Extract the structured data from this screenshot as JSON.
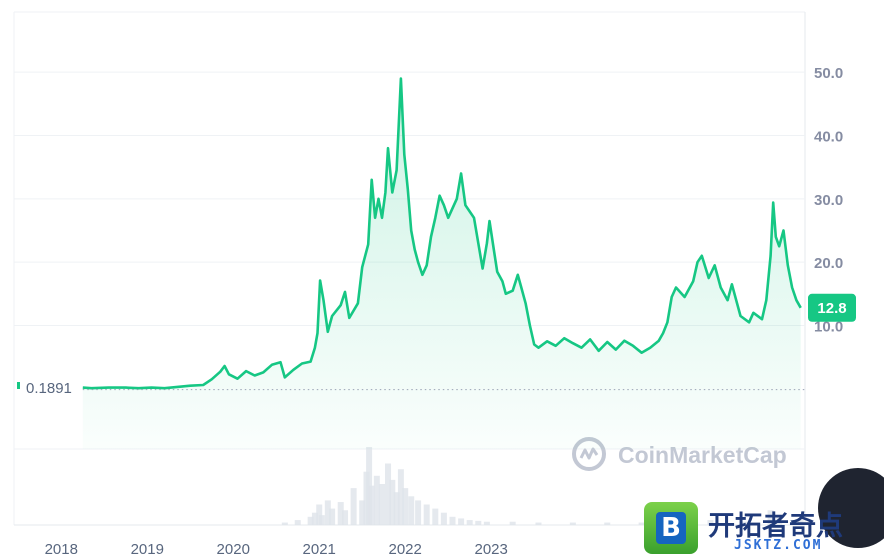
{
  "chart_data": {
    "type": "area",
    "title": "",
    "xlabel": "",
    "ylabel": "",
    "ylim": [
      -9.5,
      59.5
    ],
    "y_ticks": [
      "50.0",
      "40.0",
      "30.0",
      "20.0",
      "10.0"
    ],
    "x_ticks": [
      "2018",
      "2019",
      "2020",
      "2021",
      "2022",
      "2023"
    ],
    "start_label": "0.1891",
    "last_value_label": "12.8",
    "grid": "horizontal",
    "line_color": "#16c784",
    "series": [
      {
        "values": [
          [
            2018.3,
            0.19
          ],
          [
            2018.4,
            0.1
          ],
          [
            2018.6,
            0.2
          ],
          [
            2018.8,
            0.2
          ],
          [
            2018.95,
            0.1
          ],
          [
            2019.1,
            0.2
          ],
          [
            2019.25,
            0.1
          ],
          [
            2019.4,
            0.3
          ],
          [
            2019.55,
            0.5
          ],
          [
            2019.7,
            0.6
          ],
          [
            2019.8,
            1.5
          ],
          [
            2019.9,
            2.7
          ],
          [
            2019.95,
            3.6
          ],
          [
            2020.0,
            2.3
          ],
          [
            2020.1,
            1.6
          ],
          [
            2020.2,
            2.8
          ],
          [
            2020.3,
            2.1
          ],
          [
            2020.4,
            2.6
          ],
          [
            2020.5,
            3.8
          ],
          [
            2020.6,
            4.2
          ],
          [
            2020.65,
            1.8
          ],
          [
            2020.75,
            3.0
          ],
          [
            2020.85,
            4.0
          ],
          [
            2020.95,
            4.3
          ],
          [
            2021.0,
            6.5
          ],
          [
            2021.03,
            8.8
          ],
          [
            2021.06,
            17.1
          ],
          [
            2021.1,
            14.0
          ],
          [
            2021.15,
            9.0
          ],
          [
            2021.2,
            11.5
          ],
          [
            2021.3,
            13.2
          ],
          [
            2021.35,
            15.3
          ],
          [
            2021.4,
            11.2
          ],
          [
            2021.5,
            13.5
          ],
          [
            2021.55,
            19.2
          ],
          [
            2021.62,
            22.8
          ],
          [
            2021.66,
            33.0
          ],
          [
            2021.7,
            27.0
          ],
          [
            2021.74,
            30.0
          ],
          [
            2021.78,
            27.0
          ],
          [
            2021.82,
            31.0
          ],
          [
            2021.85,
            38.0
          ],
          [
            2021.9,
            31.0
          ],
          [
            2021.95,
            34.5
          ],
          [
            2022.0,
            49.0
          ],
          [
            2022.04,
            37.0
          ],
          [
            2022.08,
            31.5
          ],
          [
            2022.12,
            25.0
          ],
          [
            2022.16,
            22.0
          ],
          [
            2022.2,
            20.0
          ],
          [
            2022.25,
            18.0
          ],
          [
            2022.3,
            19.5
          ],
          [
            2022.35,
            24.0
          ],
          [
            2022.4,
            27.0
          ],
          [
            2022.45,
            30.5
          ],
          [
            2022.5,
            29.0
          ],
          [
            2022.55,
            27.0
          ],
          [
            2022.6,
            28.5
          ],
          [
            2022.65,
            30.0
          ],
          [
            2022.7,
            34.0
          ],
          [
            2022.75,
            29.0
          ],
          [
            2022.8,
            28.0
          ],
          [
            2022.85,
            27.0
          ],
          [
            2022.9,
            23.0
          ],
          [
            2022.95,
            19.0
          ],
          [
            2023.0,
            23.0
          ],
          [
            2023.03,
            26.5
          ],
          [
            2023.08,
            22.0
          ],
          [
            2023.12,
            18.5
          ],
          [
            2023.18,
            17.0
          ],
          [
            2023.22,
            15.0
          ],
          [
            2023.3,
            15.5
          ],
          [
            2023.36,
            18.0
          ],
          [
            2023.4,
            16.0
          ],
          [
            2023.45,
            13.5
          ],
          [
            2023.5,
            10.0
          ],
          [
            2023.55,
            7.0
          ],
          [
            2023.6,
            6.5
          ],
          [
            2023.7,
            7.5
          ],
          [
            2023.8,
            6.8
          ],
          [
            2023.9,
            8.0
          ],
          [
            2024.0,
            7.2
          ],
          [
            2024.1,
            6.5
          ],
          [
            2024.2,
            7.8
          ],
          [
            2024.3,
            6.0
          ],
          [
            2024.4,
            7.4
          ],
          [
            2024.5,
            6.2
          ],
          [
            2024.6,
            7.6
          ],
          [
            2024.7,
            6.8
          ],
          [
            2024.8,
            5.7
          ],
          [
            2024.9,
            6.5
          ],
          [
            2025.0,
            7.6
          ],
          [
            2025.05,
            8.8
          ],
          [
            2025.1,
            10.5
          ],
          [
            2025.15,
            14.5
          ],
          [
            2025.2,
            16.0
          ],
          [
            2025.3,
            14.5
          ],
          [
            2025.4,
            17.0
          ],
          [
            2025.45,
            20.0
          ],
          [
            2025.5,
            21.0
          ],
          [
            2025.58,
            17.5
          ],
          [
            2025.65,
            19.5
          ],
          [
            2025.72,
            16.0
          ],
          [
            2025.8,
            14.0
          ],
          [
            2025.85,
            16.5
          ],
          [
            2025.9,
            14.0
          ],
          [
            2025.95,
            11.5
          ],
          [
            2026.05,
            10.5
          ],
          [
            2026.1,
            12.0
          ],
          [
            2026.2,
            11.0
          ],
          [
            2026.25,
            14.0
          ],
          [
            2026.3,
            21.0
          ],
          [
            2026.33,
            29.4
          ],
          [
            2026.36,
            24.0
          ],
          [
            2026.4,
            22.5
          ],
          [
            2026.45,
            25.0
          ],
          [
            2026.5,
            19.5
          ],
          [
            2026.55,
            16.0
          ],
          [
            2026.6,
            14.0
          ],
          [
            2026.65,
            12.8
          ]
        ]
      }
    ],
    "volume_series": [
      [
        2020.65,
        0.3
      ],
      [
        2020.8,
        0.6
      ],
      [
        2020.95,
        1.0
      ],
      [
        2021.0,
        1.5
      ],
      [
        2021.05,
        2.5
      ],
      [
        2021.08,
        1.2
      ],
      [
        2021.15,
        3.0
      ],
      [
        2021.2,
        2.0
      ],
      [
        2021.3,
        2.8
      ],
      [
        2021.35,
        1.8
      ],
      [
        2021.45,
        4.5
      ],
      [
        2021.55,
        3.0
      ],
      [
        2021.6,
        6.5
      ],
      [
        2021.63,
        9.5
      ],
      [
        2021.66,
        4.8
      ],
      [
        2021.72,
        6.0
      ],
      [
        2021.78,
        5.0
      ],
      [
        2021.85,
        7.5
      ],
      [
        2021.9,
        5.5
      ],
      [
        2021.95,
        4.0
      ],
      [
        2022.0,
        6.8
      ],
      [
        2022.05,
        4.5
      ],
      [
        2022.12,
        3.5
      ],
      [
        2022.2,
        3.0
      ],
      [
        2022.3,
        2.5
      ],
      [
        2022.4,
        2.0
      ],
      [
        2022.5,
        1.5
      ],
      [
        2022.6,
        1.0
      ],
      [
        2022.7,
        0.8
      ],
      [
        2022.8,
        0.6
      ],
      [
        2022.9,
        0.5
      ],
      [
        2023.0,
        0.4
      ],
      [
        2023.3,
        0.4
      ],
      [
        2023.6,
        0.3
      ],
      [
        2024.0,
        0.3
      ],
      [
        2024.4,
        0.3
      ],
      [
        2024.8,
        0.3
      ],
      [
        2025.2,
        0.5
      ],
      [
        2025.6,
        0.6
      ],
      [
        2026.0,
        0.4
      ],
      [
        2026.3,
        1.8
      ],
      [
        2026.4,
        1.0
      ],
      [
        2026.65,
        0.6
      ]
    ]
  },
  "watermark": {
    "text": "CoinMarketCap"
  },
  "brand": {
    "logo_letter": "B",
    "name": "开拓者奇点",
    "domain": "JSKTZ.COM"
  }
}
